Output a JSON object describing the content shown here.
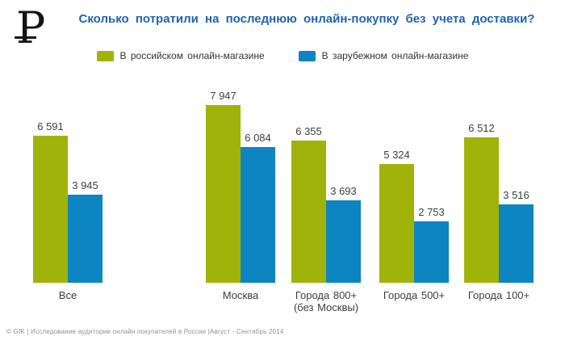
{
  "icons": {
    "ruble_logo_base": "P"
  },
  "footer": {
    "text": "© GfK | Исследование аудитории онлайн покупателей в России |Август - Сентябрь 2014"
  },
  "chart_data": {
    "type": "bar",
    "title": "Сколько потратили на последнюю онлайн-покупку без учета доставки?",
    "categories": [
      "Все",
      "Москва",
      "Города 800+\n(без Москвы)",
      "Города 500+",
      "Города 100+"
    ],
    "series": [
      {
        "name": "В российском онлайн-магазине",
        "color": "#a0b30a",
        "values": [
          6591,
          7947,
          6355,
          5324,
          6512
        ],
        "value_labels": [
          "6 591",
          "7 947",
          "6 355",
          "5 324",
          "6 512"
        ]
      },
      {
        "name": "В зарубежном онлайн-магазине",
        "color": "#0d85c3",
        "values": [
          3945,
          6084,
          3693,
          2753,
          3516
        ],
        "value_labels": [
          "3 945",
          "6 084",
          "3 693",
          "2 753",
          "3 516"
        ]
      }
    ],
    "ylim": [
      0,
      8400
    ],
    "grid": false,
    "axis_lines": false,
    "legend_position": "top",
    "value_labels_shown": true
  }
}
